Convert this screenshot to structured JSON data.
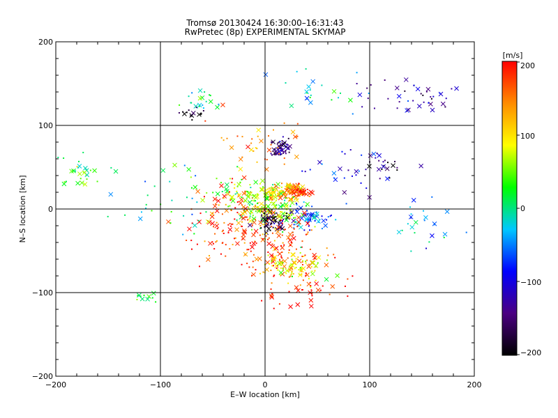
{
  "chart_data": {
    "type": "scatter",
    "title_lines": [
      "Tromsø 20130424 16:30:00–16:31:43",
      "RwPretec (8p) EXPERIMENTAL SKYMAP"
    ],
    "xlabel": "E–W location [km]",
    "ylabel": "N–S location [km]",
    "xlim": [
      -200,
      200
    ],
    "ylim": [
      -200,
      200
    ],
    "xticks": [
      "−200",
      "−100",
      "0",
      "100",
      "200"
    ],
    "yticks": [
      "−200",
      "−100",
      "0",
      "100",
      "200"
    ],
    "grid_lines_x": [
      -100,
      0,
      100
    ],
    "grid_lines_y": [
      -100,
      0,
      100
    ],
    "colorbar": {
      "label": "[m/s]",
      "range": [
        -200,
        200
      ],
      "ticks": [
        "200",
        "100",
        "0",
        "−100",
        "−200"
      ],
      "colormap": "rainbow+black",
      "stops": [
        "#000000",
        "#4b0082",
        "#0000ff",
        "#00c8ff",
        "#00ff00",
        "#ffff00",
        "#ff8c00",
        "#ff0000"
      ]
    },
    "markers": {
      "large": "x",
      "small": "dot"
    },
    "clusters": [
      {
        "x": 15,
        "y": 72,
        "n": 60,
        "sx": 5,
        "sy": 5,
        "v": -150
      },
      {
        "x": 30,
        "y": 22,
        "n": 70,
        "sx": 6,
        "sy": 4,
        "v": 190
      },
      {
        "x": 15,
        "y": 20,
        "n": 80,
        "sx": 10,
        "sy": 6,
        "v": 120
      },
      {
        "x": 5,
        "y": 0,
        "n": 150,
        "sx": 16,
        "sy": 12,
        "v": 60
      },
      {
        "x": 10,
        "y": -15,
        "n": 60,
        "sx": 10,
        "sy": 7,
        "v": -180
      },
      {
        "x": 45,
        "y": -10,
        "n": 60,
        "sx": 10,
        "sy": 8,
        "v": -60
      },
      {
        "x": 20,
        "y": -45,
        "n": 120,
        "sx": 20,
        "sy": 20,
        "v": 170
      },
      {
        "x": 25,
        "y": -70,
        "n": 80,
        "sx": 15,
        "sy": 10,
        "v": 80
      },
      {
        "x": -30,
        "y": -20,
        "n": 120,
        "sx": 20,
        "sy": 25,
        "v": 180
      },
      {
        "x": -20,
        "y": 20,
        "n": 60,
        "sx": 15,
        "sy": 10,
        "v": 60
      },
      {
        "x": -180,
        "y": 45,
        "n": 30,
        "sx": 12,
        "sy": 8,
        "v": 30
      },
      {
        "x": -115,
        "y": -105,
        "n": 12,
        "sx": 5,
        "sy": 3,
        "v": 20
      },
      {
        "x": -60,
        "y": 130,
        "n": 20,
        "sx": 8,
        "sy": 8,
        "v": 10
      },
      {
        "x": -70,
        "y": 115,
        "n": 15,
        "sx": 8,
        "sy": 4,
        "v": -190
      },
      {
        "x": 140,
        "y": 135,
        "n": 40,
        "sx": 25,
        "sy": 12,
        "v": -120
      },
      {
        "x": 60,
        "y": 140,
        "n": 25,
        "sx": 20,
        "sy": 15,
        "v": -30
      },
      {
        "x": 110,
        "y": 50,
        "n": 20,
        "sx": 15,
        "sy": 10,
        "v": -170
      },
      {
        "x": 150,
        "y": -20,
        "n": 25,
        "sx": 15,
        "sy": 15,
        "v": -40
      },
      {
        "x": 80,
        "y": 40,
        "n": 30,
        "sx": 20,
        "sy": 20,
        "v": -90
      },
      {
        "x": -80,
        "y": 10,
        "n": 40,
        "sx": 30,
        "sy": 20,
        "v": 0
      },
      {
        "x": 40,
        "y": -95,
        "n": 40,
        "sx": 25,
        "sy": 12,
        "v": 200
      },
      {
        "x": 0,
        "y": 80,
        "n": 40,
        "sx": 25,
        "sy": 20,
        "v": 140
      }
    ]
  }
}
